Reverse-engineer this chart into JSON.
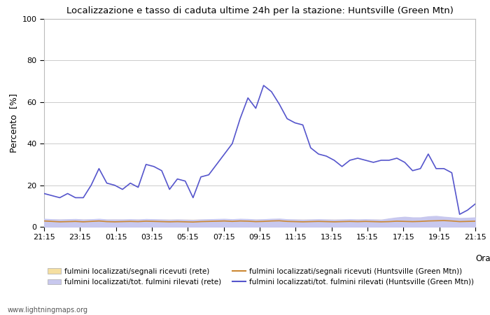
{
  "title": "Localizzazione e tasso di caduta ultime 24h per la stazione: Huntsville (Green Mtn)",
  "xlabel": "Orario",
  "ylabel": "Percento  [%]",
  "xlim": [
    0,
    24
  ],
  "ylim": [
    0,
    100
  ],
  "yticks": [
    0,
    20,
    40,
    60,
    80,
    100
  ],
  "xtick_labels": [
    "21:15",
    "23:15",
    "01:15",
    "03:15",
    "05:15",
    "07:15",
    "09:15",
    "11:15",
    "13:15",
    "15:15",
    "17:15",
    "19:15",
    "21:15"
  ],
  "background_color": "#ffffff",
  "plot_bg_color": "#ffffff",
  "grid_color": "#cccccc",
  "watermark": "www.lightningmaps.org",
  "blue_line": [
    16,
    15,
    14,
    16,
    14,
    14,
    20,
    28,
    21,
    20,
    18,
    21,
    19,
    30,
    29,
    27,
    18,
    23,
    22,
    14,
    24,
    25,
    30,
    35,
    40,
    52,
    62,
    57,
    68,
    65,
    59,
    52,
    50,
    49,
    38,
    35,
    34,
    32,
    29,
    32,
    33,
    32,
    31,
    32,
    32,
    33,
    31,
    27,
    28,
    35,
    28,
    28,
    26,
    6,
    8,
    11
  ],
  "blue_line_color": "#5555cc",
  "orange_line": [
    2.8,
    2.6,
    2.4,
    2.5,
    2.6,
    2.4,
    2.6,
    2.8,
    2.5,
    2.4,
    2.5,
    2.6,
    2.5,
    2.7,
    2.6,
    2.5,
    2.4,
    2.5,
    2.4,
    2.3,
    2.5,
    2.6,
    2.7,
    2.8,
    2.6,
    2.8,
    2.7,
    2.5,
    2.6,
    2.8,
    2.9,
    2.6,
    2.5,
    2.4,
    2.5,
    2.6,
    2.5,
    2.4,
    2.5,
    2.6,
    2.5,
    2.6,
    2.5,
    2.4,
    2.5,
    2.7,
    2.6,
    2.5,
    2.6,
    2.8,
    2.9,
    3.0,
    2.8,
    2.5,
    2.6,
    2.7
  ],
  "orange_line_color": "#cc8833",
  "light_orange_fill_top": [
    3.5,
    3.5,
    3.5,
    3.5,
    3.5,
    3.5,
    3.5,
    3.5,
    3.5,
    3.5,
    3.5,
    3.5,
    3.5,
    3.5,
    3.5,
    3.5,
    3.5,
    3.5,
    3.5,
    3.5,
    3.5,
    3.5,
    3.5,
    3.5,
    3.5,
    3.5,
    3.5,
    3.5,
    3.5,
    3.5,
    3.5,
    3.5,
    3.5,
    3.5,
    3.5,
    3.5,
    3.5,
    3.5,
    3.5,
    3.5,
    3.5,
    3.5,
    3.5,
    3.5,
    3.5,
    3.5,
    3.5,
    3.5,
    3.5,
    3.5,
    3.5,
    3.5,
    3.5,
    3.5,
    3.5,
    3.5
  ],
  "light_orange_fill_color": "#f5dfa0",
  "light_blue_fill_top": [
    3.8,
    3.6,
    3.5,
    3.6,
    3.7,
    3.5,
    3.6,
    3.8,
    3.5,
    3.5,
    3.5,
    3.6,
    3.5,
    3.7,
    3.6,
    3.5,
    3.4,
    3.5,
    3.4,
    3.3,
    3.5,
    3.6,
    3.7,
    3.8,
    3.6,
    3.8,
    3.7,
    3.5,
    3.6,
    3.8,
    3.9,
    3.6,
    3.5,
    3.4,
    3.5,
    3.6,
    3.5,
    3.4,
    3.5,
    3.6,
    3.5,
    3.6,
    3.5,
    3.4,
    4.0,
    4.5,
    4.8,
    4.5,
    4.5,
    5.0,
    5.2,
    4.8,
    4.5,
    4.2,
    4.3,
    4.5
  ],
  "light_blue_fill_color": "#c8c8ee",
  "legend": {
    "legend1_patch_color": "#f5dfa0",
    "legend1_label": "fulmini localizzati/segnali ricevuti (rete)",
    "legend2_patch_color": "#c8c8ee",
    "legend2_label": "fulmini localizzati/tot. fulmini rilevati (rete)",
    "legend3_line_color": "#cc8833",
    "legend3_label": "fulmini localizzati/segnali ricevuti (Huntsville (Green Mtn))",
    "legend4_line_color": "#5555cc",
    "legend4_label": "fulmini localizzati/tot. fulmini rilevati (Huntsville (Green Mtn))"
  }
}
